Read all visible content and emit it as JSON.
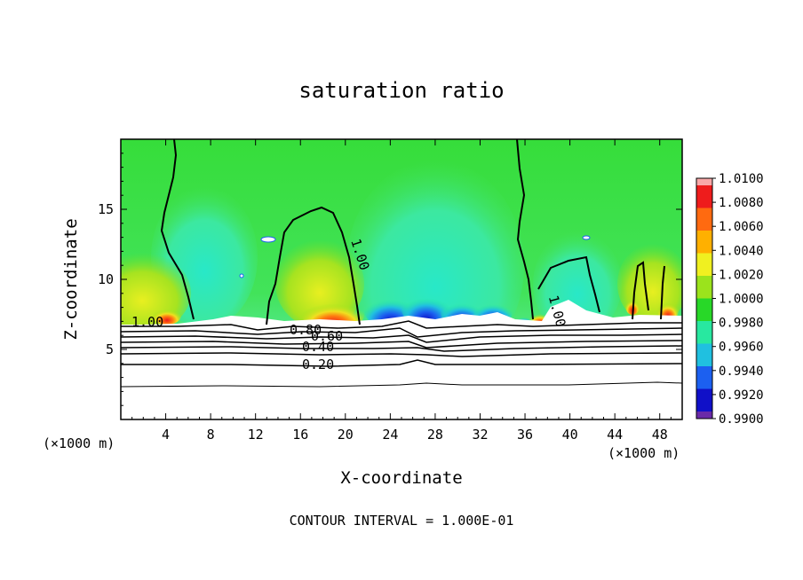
{
  "chart_data": {
    "type": "heatmap",
    "title": "saturation ratio",
    "xlabel": "X-coordinate",
    "ylabel": "Z-coordinate",
    "x_units_left": "(×1000 m)",
    "x_units_right": "(×1000 m)",
    "xlim": [
      0,
      50
    ],
    "ylim": [
      0,
      20
    ],
    "x_ticks": [
      "4",
      "8",
      "12",
      "16",
      "20",
      "24",
      "28",
      "32",
      "36",
      "40",
      "44",
      "48"
    ],
    "y_ticks": [
      "5",
      "10",
      "15"
    ],
    "colorbar": {
      "levels": [
        "1.0100",
        "1.0080",
        "1.0060",
        "1.0040",
        "1.0020",
        "1.0000",
        "0.9980",
        "0.9960",
        "0.9940",
        "0.9920",
        "0.9900"
      ],
      "colors": [
        "#f8a8a8",
        "#ee1c1c",
        "#ff6a10",
        "#ffb000",
        "#f0f020",
        "#9be31c",
        "#28d828",
        "#28e8a0",
        "#20c0e0",
        "#1c60f0",
        "#1010c8",
        "#6a2aa8"
      ]
    },
    "contour_labels": [
      "1.00",
      "1.00",
      "1.00",
      "0.80",
      "0.60",
      "0.40",
      "0.20"
    ],
    "footer": "CONTOUR INTERVAL = 1.000E-01"
  }
}
